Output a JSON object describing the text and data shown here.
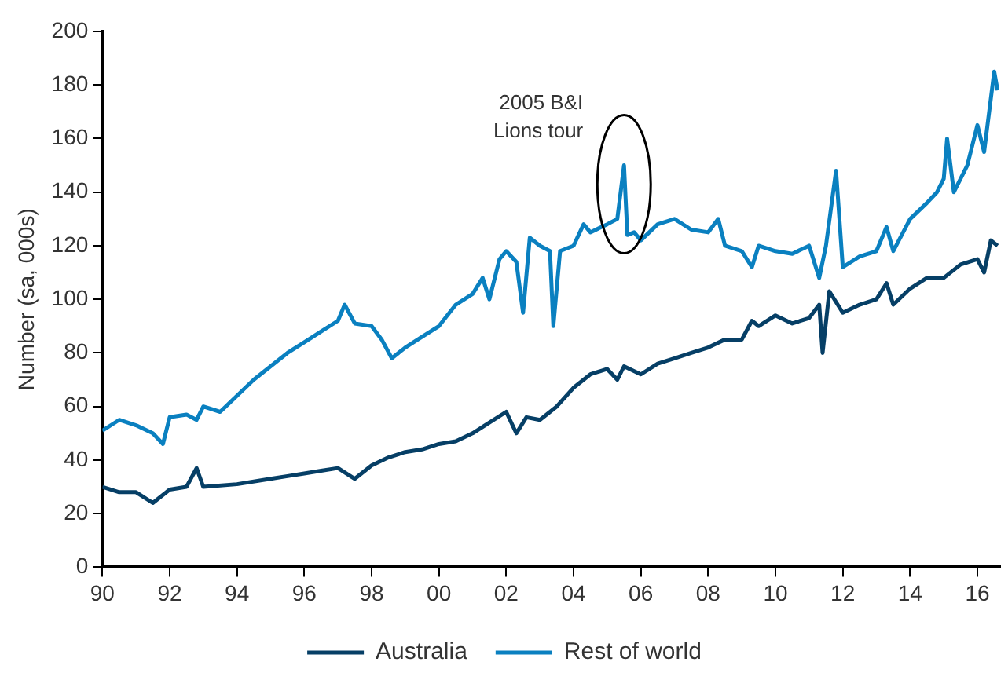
{
  "chart_data": {
    "type": "line",
    "ylabel": "Number (sa, 000s)",
    "xlim": [
      1990,
      2016.7
    ],
    "xticks": [
      {
        "value": 1990,
        "label": "90"
      },
      {
        "value": 1992,
        "label": "92"
      },
      {
        "value": 1994,
        "label": "94"
      },
      {
        "value": 1996,
        "label": "96"
      },
      {
        "value": 1998,
        "label": "98"
      },
      {
        "value": 2000,
        "label": "00"
      },
      {
        "value": 2002,
        "label": "02"
      },
      {
        "value": 2004,
        "label": "04"
      },
      {
        "value": 2006,
        "label": "06"
      },
      {
        "value": 2008,
        "label": "08"
      },
      {
        "value": 2010,
        "label": "10"
      },
      {
        "value": 2012,
        "label": "12"
      },
      {
        "value": 2014,
        "label": "14"
      },
      {
        "value": 2016,
        "label": "16"
      }
    ],
    "ylim": [
      0,
      200
    ],
    "yticks": [
      0,
      20,
      40,
      60,
      80,
      100,
      120,
      140,
      160,
      180,
      200
    ],
    "grid": false,
    "legend": "bottom",
    "marker": "none",
    "line_style": "solid",
    "annotations": [
      {
        "text": "2005 B&I\nLions tour",
        "x": 2005.5,
        "y": 150
      }
    ],
    "series": [
      {
        "name": "Australia",
        "color": "#063f66",
        "x": [
          1990,
          1990.5,
          1991,
          1991.5,
          1992,
          1992.5,
          1992.8,
          1993,
          1994,
          1995,
          1995.5,
          1996,
          1996.5,
          1997,
          1997.5,
          1998,
          1998.5,
          1999,
          1999.5,
          2000,
          2000.5,
          2001,
          2001.5,
          2002,
          2002.3,
          2002.6,
          2003,
          2003.5,
          2004,
          2004.5,
          2005,
          2005.3,
          2005.5,
          2006,
          2006.5,
          2007,
          2007.5,
          2008,
          2008.5,
          2009,
          2009.3,
          2009.5,
          2010,
          2010.5,
          2011,
          2011.3,
          2011.4,
          2011.6,
          2012,
          2012.5,
          2013,
          2013.3,
          2013.5,
          2014,
          2014.5,
          2015,
          2015.5,
          2016,
          2016.2,
          2016.4,
          2016.6
        ],
        "values": [
          30,
          28,
          28,
          24,
          29,
          30,
          37,
          30,
          31,
          33,
          34,
          35,
          36,
          37,
          33,
          38,
          41,
          43,
          44,
          46,
          47,
          50,
          54,
          58,
          50,
          56,
          55,
          60,
          67,
          72,
          74,
          70,
          75,
          72,
          76,
          78,
          80,
          82,
          85,
          85,
          92,
          90,
          94,
          91,
          93,
          98,
          80,
          103,
          95,
          98,
          100,
          106,
          98,
          104,
          108,
          108,
          113,
          115,
          110,
          122,
          120
        ]
      },
      {
        "name": "Rest of world",
        "color": "#0a80c0",
        "x": [
          1990,
          1990.5,
          1991,
          1991.5,
          1991.8,
          1992,
          1992.5,
          1992.8,
          1993,
          1993.5,
          1994,
          1994.5,
          1995,
          1995.5,
          1996,
          1996.5,
          1997,
          1997.2,
          1997.5,
          1998,
          1998.3,
          1998.6,
          1999,
          1999.5,
          2000,
          2000.5,
          2001,
          2001.3,
          2001.5,
          2001.8,
          2002,
          2002.3,
          2002.5,
          2002.7,
          2003,
          2003.3,
          2003.4,
          2003.6,
          2004,
          2004.3,
          2004.5,
          2005,
          2005.3,
          2005.5,
          2005.6,
          2005.8,
          2006,
          2006.5,
          2007,
          2007.5,
          2008,
          2008.3,
          2008.5,
          2009,
          2009.3,
          2009.5,
          2010,
          2010.5,
          2011,
          2011.3,
          2011.5,
          2011.8,
          2012,
          2012.5,
          2013,
          2013.3,
          2013.5,
          2014,
          2014.5,
          2014.8,
          2015,
          2015.1,
          2015.3,
          2015.7,
          2016,
          2016.2,
          2016.5,
          2016.6
        ],
        "values": [
          51,
          55,
          53,
          50,
          46,
          56,
          57,
          55,
          60,
          58,
          64,
          70,
          75,
          80,
          84,
          88,
          92,
          98,
          91,
          90,
          85,
          78,
          82,
          86,
          90,
          98,
          102,
          108,
          100,
          115,
          118,
          114,
          95,
          123,
          120,
          118,
          90,
          118,
          120,
          128,
          125,
          128,
          130,
          150,
          124,
          125,
          122,
          128,
          130,
          126,
          125,
          130,
          120,
          118,
          112,
          120,
          118,
          117,
          120,
          108,
          120,
          148,
          112,
          116,
          118,
          127,
          118,
          130,
          136,
          140,
          145,
          160,
          140,
          150,
          165,
          155,
          185,
          178
        ]
      }
    ]
  }
}
